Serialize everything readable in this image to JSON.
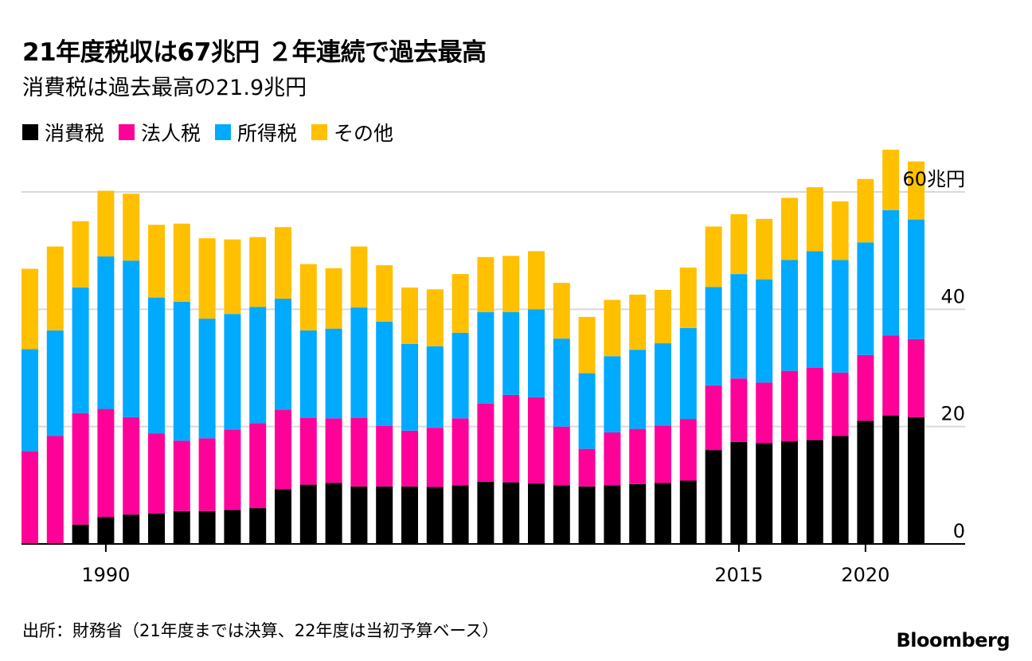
{
  "title": "21年度税収は67兆円 ２年連続で過去最高",
  "subtitle": "消費税は過去最高の21.9兆円",
  "source": "出所：財務省（21年度までは決算、22年度は当初予算ベース）",
  "brand": "Bloomberg",
  "colors": {
    "consumption": "#000000",
    "corporate": "#ff0099",
    "income": "#00aaff",
    "other": "#ffc000",
    "grid": "#d9d9d9",
    "axis": "#000000"
  },
  "chart_data": {
    "type": "bar",
    "stacked": true,
    "title": "21年度税収は67兆円 ２年連続で過去最高",
    "unit_label": "兆円",
    "ylim": [
      0,
      60
    ],
    "y_ticks": [
      {
        "value": 60,
        "label": "60兆円"
      },
      {
        "value": 40,
        "label": "40"
      },
      {
        "value": 20,
        "label": "20"
      },
      {
        "value": 0,
        "label": "0"
      }
    ],
    "x": [
      1987,
      1988,
      1989,
      1990,
      1991,
      1992,
      1993,
      1994,
      1995,
      1996,
      1997,
      1998,
      1999,
      2000,
      2001,
      2002,
      2003,
      2004,
      2005,
      2006,
      2007,
      2008,
      2009,
      2010,
      2011,
      2012,
      2013,
      2014,
      2015,
      2016,
      2017,
      2018,
      2019,
      2020,
      2021,
      2022
    ],
    "x_tick_labels": [
      {
        "x": 1990,
        "label": "1990"
      },
      {
        "x": 2015,
        "label": "2015"
      },
      {
        "x": 2020,
        "label": "2020"
      }
    ],
    "legend": [
      "消費税",
      "法人税",
      "所得税",
      "その他"
    ],
    "series": [
      {
        "name": "消費税",
        "color": "#000000",
        "values": [
          0,
          0,
          3.3,
          4.6,
          5.0,
          5.2,
          5.6,
          5.6,
          5.8,
          6.1,
          9.3,
          10.1,
          10.4,
          9.8,
          9.8,
          9.8,
          9.7,
          10.0,
          10.6,
          10.5,
          10.3,
          10.0,
          9.8,
          10.0,
          10.2,
          10.4,
          10.8,
          16.0,
          17.4,
          17.2,
          17.5,
          17.7,
          18.4,
          21.0,
          21.9,
          21.6
        ]
      },
      {
        "name": "法人税",
        "color": "#ff0099",
        "values": [
          15.8,
          18.4,
          19.0,
          18.4,
          16.6,
          13.6,
          12.0,
          12.4,
          13.7,
          14.5,
          13.6,
          11.4,
          11.0,
          11.7,
          10.3,
          9.5,
          10.1,
          11.4,
          13.3,
          14.9,
          14.7,
          10.0,
          6.4,
          9.0,
          9.4,
          9.8,
          10.5,
          11.0,
          10.8,
          10.3,
          12.0,
          12.3,
          10.8,
          11.2,
          13.6,
          13.3
        ]
      },
      {
        "name": "所得税",
        "color": "#00aaff",
        "values": [
          17.4,
          18.0,
          21.4,
          26.0,
          26.7,
          23.2,
          23.7,
          20.4,
          19.7,
          19.8,
          18.9,
          14.9,
          15.3,
          18.8,
          17.8,
          14.8,
          13.9,
          14.6,
          15.6,
          14.1,
          15.0,
          15.0,
          12.9,
          13.0,
          13.5,
          14.0,
          15.5,
          16.8,
          17.8,
          17.6,
          18.9,
          19.9,
          19.2,
          19.2,
          21.4,
          20.4
        ]
      },
      {
        "name": "その他",
        "color": "#ffc000",
        "values": [
          13.7,
          14.3,
          11.3,
          11.2,
          11.4,
          12.4,
          13.3,
          13.7,
          12.7,
          11.9,
          12.2,
          11.3,
          10.3,
          10.4,
          9.6,
          9.6,
          9.7,
          10.0,
          9.4,
          9.6,
          9.9,
          9.5,
          9.6,
          9.6,
          9.4,
          9.1,
          10.3,
          10.3,
          10.2,
          10.3,
          10.6,
          10.9,
          10.0,
          10.8,
          10.3,
          9.9
        ]
      }
    ]
  }
}
